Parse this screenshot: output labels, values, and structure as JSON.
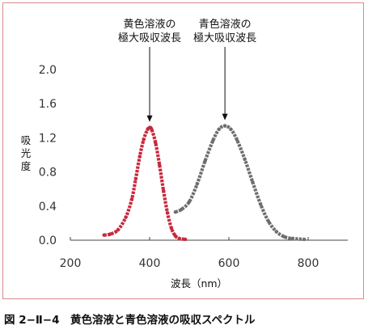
{
  "chart_data": {
    "type": "line",
    "xlabel": "波長（nm）",
    "ylabel": [
      "吸",
      "光",
      "度"
    ],
    "xlim": [
      200,
      900
    ],
    "ylim": [
      0,
      2.0
    ],
    "xticks": [
      "200",
      "400",
      "600",
      "800"
    ],
    "xtick_values": [
      200,
      400,
      600,
      800
    ],
    "yticks": [
      "0.0",
      "0.4",
      "0.8",
      "1.2",
      "1.6",
      "2.0"
    ],
    "ytick_values": [
      0.0,
      0.4,
      0.8,
      1.2,
      1.6,
      2.0
    ],
    "grid": false,
    "series": [
      {
        "color": "#c8283c",
        "style": "dotted",
        "peak_x": 400,
        "points": [
          [
            285,
            0.06
          ],
          [
            300,
            0.07
          ],
          [
            320,
            0.12
          ],
          [
            340,
            0.27
          ],
          [
            355,
            0.48
          ],
          [
            365,
            0.72
          ],
          [
            375,
            0.98
          ],
          [
            385,
            1.18
          ],
          [
            395,
            1.3
          ],
          [
            400,
            1.32
          ],
          [
            405,
            1.3
          ],
          [
            415,
            1.14
          ],
          [
            425,
            0.88
          ],
          [
            435,
            0.58
          ],
          [
            445,
            0.32
          ],
          [
            455,
            0.14
          ],
          [
            465,
            0.05
          ],
          [
            475,
            0.02
          ],
          [
            490,
            0.01
          ]
        ]
      },
      {
        "color": "#6e6e6e",
        "style": "dotted",
        "peak_x": 590,
        "points": [
          [
            465,
            0.33
          ],
          [
            480,
            0.36
          ],
          [
            500,
            0.45
          ],
          [
            520,
            0.66
          ],
          [
            540,
            0.93
          ],
          [
            560,
            1.17
          ],
          [
            575,
            1.3
          ],
          [
            590,
            1.34
          ],
          [
            605,
            1.3
          ],
          [
            620,
            1.18
          ],
          [
            640,
            0.95
          ],
          [
            660,
            0.68
          ],
          [
            680,
            0.42
          ],
          [
            700,
            0.22
          ],
          [
            720,
            0.1
          ],
          [
            740,
            0.04
          ],
          [
            760,
            0.02
          ],
          [
            790,
            0.01
          ]
        ]
      }
    ],
    "annotations": [
      {
        "lines": [
          "黄色溶液の",
          "極大吸収波長"
        ],
        "x": 400
      },
      {
        "lines": [
          "青色溶液の",
          "極大吸収波長"
        ],
        "x": 590
      }
    ]
  },
  "caption": "図 2−Ⅱ−4　黄色溶液と青色溶液の吸収スペクトル",
  "frame_color": "#d98a8f"
}
